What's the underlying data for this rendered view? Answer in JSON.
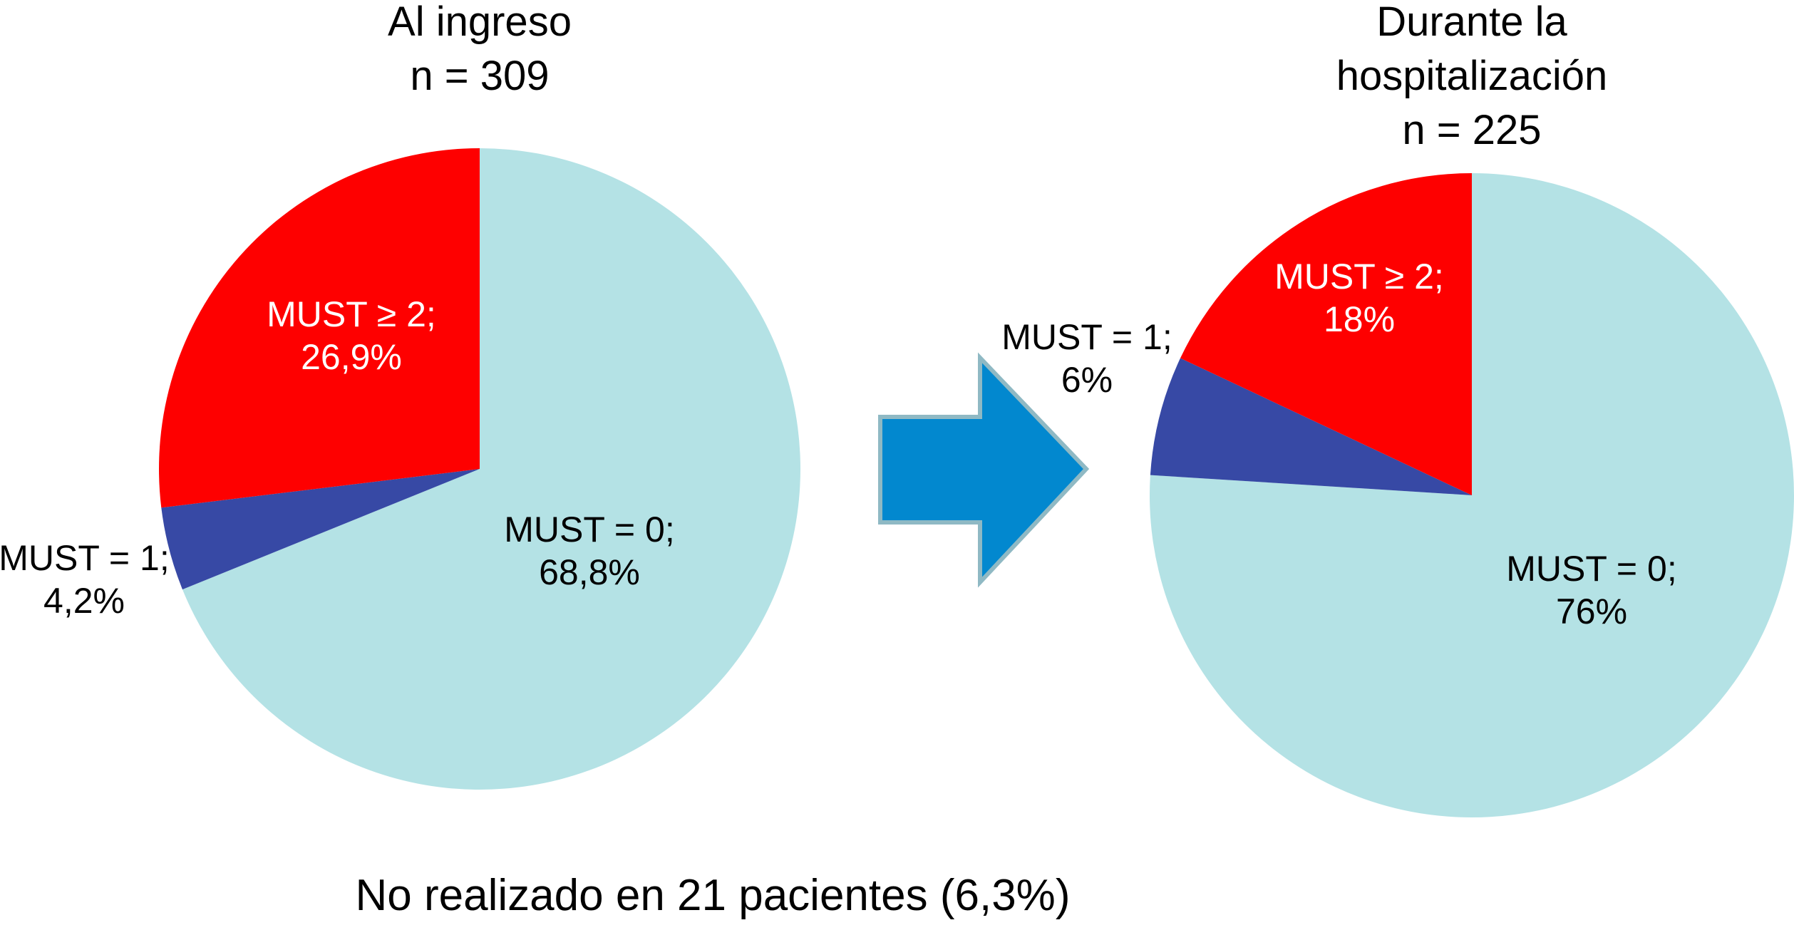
{
  "chart_data": [
    {
      "type": "pie",
      "title_lines": [
        "Al ingreso",
        "n = 309"
      ],
      "slices": [
        {
          "name": "MUST = 0",
          "value": 68.8,
          "label": [
            "MUST = 0;",
            "68,8%"
          ],
          "color": "#b4e2e5",
          "label_color": "#000000"
        },
        {
          "name": "MUST = 1",
          "value": 4.2,
          "label": [
            "MUST = 1;",
            "4,2%"
          ],
          "color": "#3749a5",
          "label_color": "#000000"
        },
        {
          "name": "MUST ≥ 2",
          "value": 26.9,
          "label": [
            "MUST ≥ 2;",
            "26,9%"
          ],
          "color": "#fe0000",
          "label_color": "#ffffff"
        }
      ]
    },
    {
      "type": "pie",
      "title_lines": [
        "Durante la",
        "hospitalización",
        "n = 225"
      ],
      "slices": [
        {
          "name": "MUST = 0",
          "value": 76,
          "label": [
            "MUST = 0;",
            "76%"
          ],
          "color": "#b4e2e5",
          "label_color": "#000000"
        },
        {
          "name": "MUST = 1",
          "value": 6,
          "label": [
            "MUST = 1;",
            "6%"
          ],
          "color": "#3749a5",
          "label_color": "#000000"
        },
        {
          "name": "MUST ≥ 2",
          "value": 18,
          "label": [
            "MUST ≥ 2;",
            "18%"
          ],
          "color": "#fe0000",
          "label_color": "#ffffff"
        }
      ]
    }
  ],
  "arrow": {
    "icon": "right-arrow-icon",
    "fill": "#0288cf",
    "stroke": "#8fb9c4"
  },
  "footnote": "No realizado en 21 pacientes (6,3%)"
}
